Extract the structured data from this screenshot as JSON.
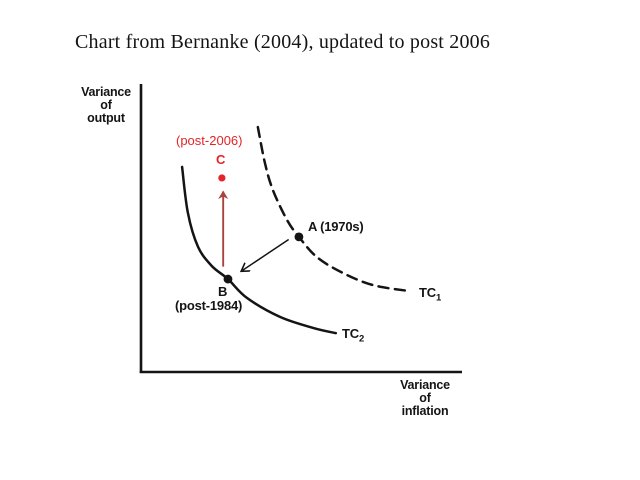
{
  "title": "Chart from Bernanke (2004), updated to post 2006",
  "colors": {
    "background": "#ffffff",
    "ink": "#141414",
    "annotation_red": "#e32528",
    "arrow_red": "#a8433e"
  },
  "axes": {
    "y_label_lines": [
      "Variance",
      "of",
      "output"
    ],
    "x_label_lines": [
      "Variance",
      "of",
      "inflation"
    ]
  },
  "labels": {
    "point_a": "A (1970s)",
    "point_b": "B",
    "point_b_caption": "(post-1984)",
    "point_c": "C",
    "point_c_caption": "(post-2006)",
    "tc_base": "TC",
    "tc1_sub": "1",
    "tc2_sub": "2"
  },
  "chart_data": {
    "type": "line",
    "title": "Taylor curve shift: variance of output vs variance of inflation",
    "xlabel": "Variance of inflation",
    "ylabel": "Variance of output",
    "x_range": [
      0,
      10
    ],
    "y_range": [
      0,
      10
    ],
    "axes_quantitative": false,
    "grid": false,
    "legend": false,
    "series": [
      {
        "name": "TC1",
        "style": "dashed",
        "color": "black",
        "x": [
          3.64,
          3.86,
          4.11,
          4.55,
          4.92,
          5.48,
          6.29,
          7.23,
          8.32
        ],
        "y": [
          8.51,
          7.27,
          6.33,
          5.29,
          4.71,
          4.01,
          3.46,
          3.04,
          2.84
        ]
      },
      {
        "name": "TC2",
        "style": "solid",
        "color": "black",
        "x": [
          1.28,
          1.46,
          1.78,
          2.21,
          2.71,
          3.3,
          4.33,
          5.36,
          6.07
        ],
        "y": [
          7.13,
          5.54,
          4.36,
          3.7,
          3.25,
          2.6,
          1.94,
          1.56,
          1.38
        ]
      }
    ],
    "points": [
      {
        "id": "A",
        "label": "A (1970s)",
        "x": 4.92,
        "y": 4.71,
        "color": "black",
        "on_curve": "TC1"
      },
      {
        "id": "B",
        "label": "B (post-1984)",
        "x": 2.71,
        "y": 3.25,
        "color": "black",
        "on_curve": "TC2"
      },
      {
        "id": "C",
        "label": "C (post-2006)",
        "x": 2.52,
        "y": 6.75,
        "color": "red",
        "on_curve": null
      }
    ],
    "arrows": [
      {
        "id": "a-to-b",
        "from": [
          4.6,
          4.62
        ],
        "to": [
          3.12,
          3.52
        ],
        "color": "black",
        "meaning": "shift from A to B"
      },
      {
        "id": "b-to-c",
        "from": [
          2.56,
          3.68
        ],
        "to": [
          2.56,
          6.28
        ],
        "color": "dark-red",
        "meaning": "shift from B up toward C"
      }
    ]
  }
}
